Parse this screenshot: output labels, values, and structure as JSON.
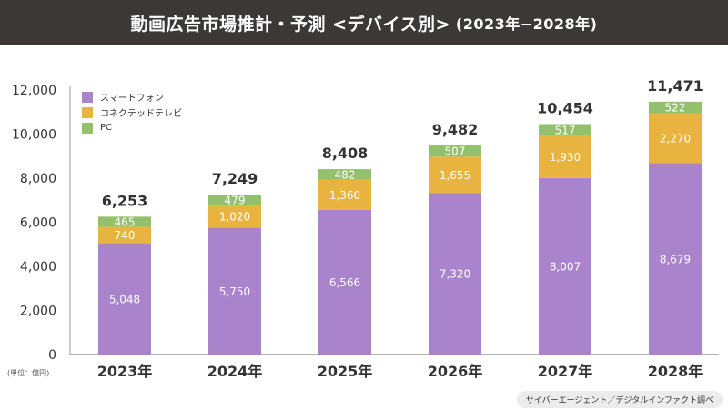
{
  "header": {
    "title": "動画広告市場推計・予測 <デバイス別>",
    "subtitle": "(2023年−2028年)"
  },
  "unit_label": "(単位：億円)",
  "source": "サイバーエージェント／デジタルインファクト調べ",
  "chart_data": {
    "type": "bar",
    "stacked": true,
    "categories": [
      "2023年",
      "2024年",
      "2025年",
      "2026年",
      "2027年",
      "2028年"
    ],
    "series": [
      {
        "name": "スマートフォン",
        "color": "#a984cc",
        "values": [
          5048,
          5750,
          6566,
          7320,
          8007,
          8679
        ]
      },
      {
        "name": "コネクテッドテレビ",
        "color": "#e8b43f",
        "values": [
          740,
          1020,
          1360,
          1655,
          1930,
          2270
        ]
      },
      {
        "name": "PC",
        "color": "#92c06c",
        "values": [
          465,
          479,
          482,
          507,
          517,
          522
        ]
      }
    ],
    "totals": [
      6253,
      7249,
      8408,
      9482,
      10454,
      11471
    ],
    "ylim": [
      0,
      12000
    ],
    "yticks": [
      0,
      2000,
      4000,
      6000,
      8000,
      10000,
      12000
    ],
    "legend": "top-left",
    "grid": false
  }
}
